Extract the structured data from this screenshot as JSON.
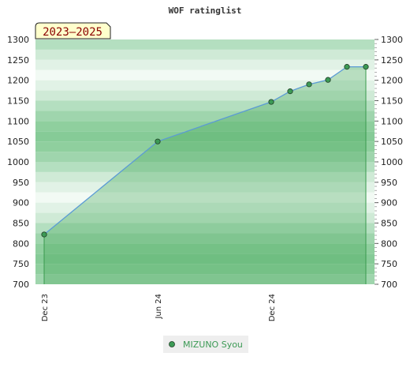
{
  "chart_data": {
    "type": "area",
    "title": "WOF ratinglist",
    "annotation": "2023–2025",
    "ylim": [
      700,
      1300
    ],
    "y_ticks": [
      "1300",
      "1250",
      "1200",
      "1150",
      "1100",
      "1050",
      "1000",
      "950",
      "900",
      "850",
      "800",
      "750",
      "700"
    ],
    "x_ticks": [
      "Dec 23",
      "Jun 24",
      "Dec 24"
    ],
    "legend_position": "bottom-center",
    "colors": {
      "line": "#5b9bd5",
      "fill": "#3fa653",
      "point": "#3c9a55"
    },
    "series": [
      {
        "name": "MIZUNO Syou",
        "x": [
          "2023-12",
          "2024-06",
          "2024-12",
          "2025-01",
          "2025-02",
          "2025-03",
          "2025-04",
          "2025-05"
        ],
        "values": [
          822,
          1050,
          1147,
          1173,
          1190,
          1201,
          1233,
          1233
        ]
      }
    ]
  }
}
